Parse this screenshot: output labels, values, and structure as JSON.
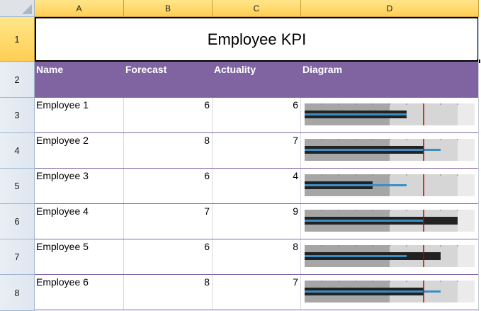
{
  "columns": [
    "A",
    "B",
    "C",
    "D"
  ],
  "rows": [
    "1",
    "2",
    "3",
    "4",
    "5",
    "6",
    "7",
    "8"
  ],
  "title": "Employee KPI",
  "headers": {
    "name": "Name",
    "forecast": "Forecast",
    "actuality": "Actuality",
    "diagram": "Diagram"
  },
  "employees": [
    {
      "name": "Employee 1",
      "forecast": 6,
      "actuality": 6
    },
    {
      "name": "Employee 2",
      "forecast": 8,
      "actuality": 7
    },
    {
      "name": "Employee 3",
      "forecast": 6,
      "actuality": 4
    },
    {
      "name": "Employee 4",
      "forecast": 7,
      "actuality": 9
    },
    {
      "name": "Employee 5",
      "forecast": 6,
      "actuality": 8
    },
    {
      "name": "Employee 6",
      "forecast": 8,
      "actuality": 7
    }
  ],
  "chart_data": {
    "type": "bullet",
    "axis_max": 10,
    "ranges": [
      5,
      9
    ],
    "target": 7,
    "series": [
      {
        "name": "Forecast",
        "values": [
          6,
          8,
          6,
          7,
          6,
          8
        ],
        "color": "#3b8ec4"
      },
      {
        "name": "Actuality",
        "values": [
          6,
          7,
          4,
          9,
          8,
          7
        ],
        "color": "#222222"
      }
    ],
    "target_color": "#c00000"
  },
  "colors": {
    "header_fill": "#8064a2",
    "selected_header": "#ffd966"
  }
}
